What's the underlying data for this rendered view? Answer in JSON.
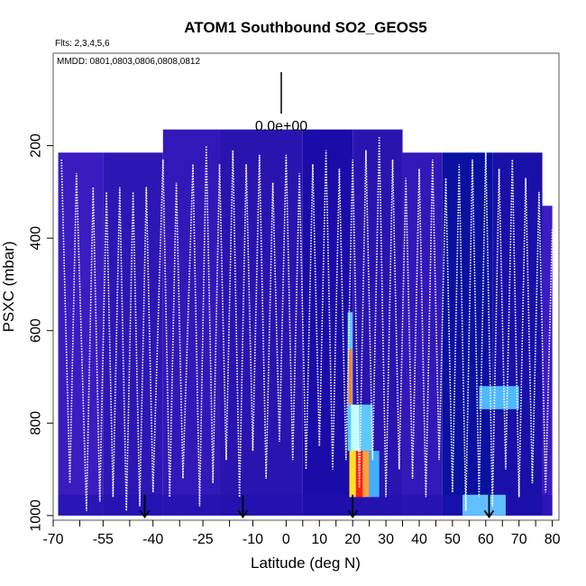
{
  "chart_data": {
    "type": "heatmap",
    "title": "ATOM1 Southbound SO2_GEOS5",
    "subtitle_flights": "Flts: 2,3,4,5,6",
    "subtitle_dates": "MMDD: 0801,0803,0806,0808,0812",
    "scale_label": "0.0e+00",
    "xlabel": "Latitude (deg N)",
    "ylabel": "PSXC (mbar)",
    "xlim": [
      -70,
      82
    ],
    "ylim": [
      1010,
      0
    ],
    "x_ticks": [
      -70,
      -55,
      -40,
      -25,
      -10,
      0,
      10,
      20,
      30,
      40,
      50,
      60,
      70,
      80
    ],
    "x_tick_labels": [
      "-70",
      "-55",
      "-40",
      "-25",
      "-10",
      "0",
      "10",
      "20",
      "30",
      "40",
      "50",
      "60",
      "70",
      "80"
    ],
    "x_minor_ticks": [
      -62,
      -47,
      -32,
      -17,
      5,
      15,
      25,
      35,
      45,
      55,
      65,
      75
    ],
    "y_ticks": [
      200,
      400,
      600,
      800,
      1000
    ],
    "y_tick_labels": [
      "200",
      "400",
      "600",
      "800",
      "1000"
    ],
    "background_color": "#3218b8",
    "curtain_segments": [
      {
        "x0": -68.5,
        "x1": -55,
        "top": 215,
        "color": "#3a1cc0"
      },
      {
        "x0": -55,
        "x1": -37,
        "top": 215,
        "color": "#2e16b4"
      },
      {
        "x0": -37,
        "x1": -20,
        "top": 165,
        "color": "#3218b8"
      },
      {
        "x0": -20,
        "x1": 5,
        "top": 165,
        "color": "#2a14b0"
      },
      {
        "x0": 5,
        "x1": 20,
        "top": 165,
        "color": "#1a0ca8"
      },
      {
        "x0": 20,
        "x1": 35,
        "top": 165,
        "color": "#2a14b0"
      },
      {
        "x0": 35,
        "x1": 47,
        "top": 215,
        "color": "#3218b8"
      },
      {
        "x0": 47,
        "x1": 62,
        "top": 215,
        "color": "#0a10a0"
      },
      {
        "x0": 62,
        "x1": 77,
        "top": 215,
        "color": "#1810a8"
      },
      {
        "x0": 77,
        "x1": 80,
        "top": 330,
        "color": "#3a1cc0"
      }
    ],
    "highlights": [
      {
        "x0": 18.5,
        "x1": 20,
        "y0": 560,
        "y1": 860,
        "color": "#60c8ff"
      },
      {
        "x0": 18.8,
        "x1": 19.8,
        "y0": 640,
        "y1": 760,
        "color": "#ff8030"
      },
      {
        "x0": 19.5,
        "x1": 22,
        "y0": 760,
        "y1": 860,
        "color": "#c0ffff"
      },
      {
        "x0": 22,
        "x1": 26,
        "y0": 760,
        "y1": 860,
        "color": "#60c8ff"
      },
      {
        "x0": 19,
        "x1": 21,
        "y0": 860,
        "y1": 960,
        "color": "#ffe020"
      },
      {
        "x0": 21,
        "x1": 23,
        "y0": 860,
        "y1": 960,
        "color": "#ff2010"
      },
      {
        "x0": 23,
        "x1": 25,
        "y0": 860,
        "y1": 960,
        "color": "#ffa040"
      },
      {
        "x0": 25,
        "x1": 28,
        "y0": 860,
        "y1": 960,
        "color": "#40b0ff"
      },
      {
        "x0": 58,
        "x1": 70,
        "y0": 720,
        "y1": 770,
        "color": "#50b8ff"
      },
      {
        "x0": 53,
        "x1": 66,
        "y0": 955,
        "y1": 1000,
        "color": "#60c0ff"
      }
    ],
    "flight_track_lat": [
      -67.5,
      -65,
      -63,
      -60,
      -58,
      -56,
      -54,
      -52,
      -50,
      -48,
      -46,
      -44,
      -42,
      -40,
      -37,
      -35,
      -33,
      -31,
      -28,
      -26,
      -24,
      -22,
      -20,
      -18,
      -16,
      -14,
      -12,
      -10,
      -8,
      -6,
      -4,
      -2,
      0,
      2,
      4,
      6,
      8,
      10,
      12,
      14,
      16,
      18,
      20,
      22,
      24,
      26,
      28,
      30,
      32,
      34,
      36,
      38,
      40,
      42,
      44,
      46,
      48,
      50,
      52,
      54,
      56,
      58,
      60,
      62,
      64,
      66,
      68,
      70,
      72,
      74,
      76,
      78,
      80
    ],
    "flight_track_pressure": [
      230,
      930,
      260,
      990,
      290,
      970,
      300,
      960,
      290,
      990,
      300,
      980,
      290,
      950,
      230,
      960,
      280,
      920,
      240,
      980,
      200,
      930,
      240,
      880,
      210,
      960,
      240,
      860,
      220,
      920,
      280,
      840,
      220,
      880,
      260,
      900,
      240,
      850,
      210,
      900,
      250,
      880,
      230,
      940,
      210,
      880,
      180,
      960,
      230,
      900,
      270,
      920,
      250,
      960,
      230,
      880,
      270,
      950,
      240,
      990,
      230,
      960,
      210,
      980,
      250,
      900,
      230,
      960,
      270,
      930,
      300,
      950,
      380
    ],
    "descent_arrows_lat": [
      -42.5,
      -13,
      20,
      61
    ]
  }
}
